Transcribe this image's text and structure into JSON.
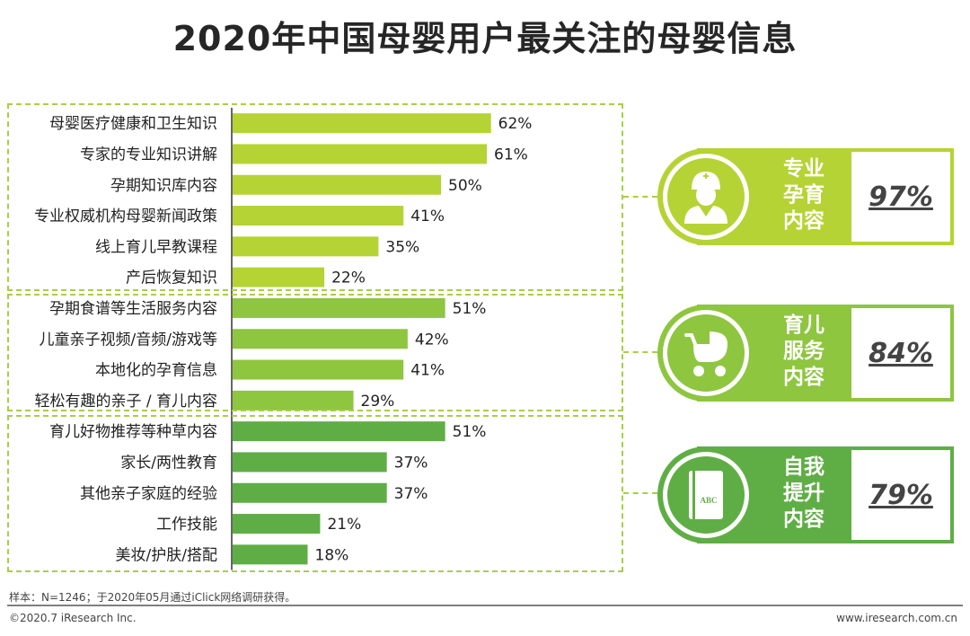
{
  "title": "2020年中国母婴用户最关注的母婴信息",
  "chart_data": {
    "type": "bar",
    "orientation": "horizontal",
    "title": "2020年中国母婴用户最关注的母婴信息",
    "unit": "%",
    "categories": [
      "母婴医疗健康和卫生知识",
      "专家的专业知识讲解",
      "孕期知识库内容",
      "专业权威机构母婴新闻政策",
      "线上育儿早教课程",
      "产后恢复知识",
      "孕期食谱等生活服务内容",
      "儿童亲子视频/音频/游戏等",
      "本地化的孕育信息",
      "轻松有趣的亲子 / 育儿内容",
      "育儿好物推荐等种草内容",
      "家长/两性教育",
      "其他亲子家庭的经验",
      "工作技能",
      "美妆/护肤/搭配"
    ],
    "values": [
      62,
      61,
      50,
      41,
      35,
      22,
      51,
      42,
      41,
      29,
      51,
      37,
      37,
      21,
      18
    ],
    "value_labels": [
      "62%",
      "61%",
      "50%",
      "41%",
      "35%",
      "22%",
      "51%",
      "42%",
      "41%",
      "29%",
      "51%",
      "37%",
      "37%",
      "21%",
      "18%"
    ],
    "xlim": [
      0,
      100
    ],
    "groups": [
      {
        "name": "专业孕育内容",
        "start": 0,
        "count": 6,
        "color": "#b5d334",
        "total": 97,
        "total_label": "97%"
      },
      {
        "name": "育儿服务内容",
        "start": 6,
        "count": 4,
        "color": "#8ec63f",
        "total": 84,
        "total_label": "84%"
      },
      {
        "name": "自我提升内容",
        "start": 10,
        "count": 5,
        "color": "#5fae45",
        "total": 79,
        "total_label": "79%"
      }
    ]
  },
  "summaries": [
    {
      "label": "专业孕育内容",
      "line1": "专业",
      "line2": "孕育",
      "line3": "内容",
      "value": "97%",
      "color": "#b5d334",
      "icon": "nurse-icon"
    },
    {
      "label": "育儿服务内容",
      "line1": "育儿",
      "line2": "服务",
      "line3": "内容",
      "value": "84%",
      "color": "#8ec63f",
      "icon": "stroller-icon"
    },
    {
      "label": "自我提升内容",
      "line1": "自我",
      "line2": "提升",
      "line3": "内容",
      "value": "79%",
      "color": "#5fae45",
      "icon": "book-icon"
    }
  ],
  "book_icon_text": "ABC",
  "footer": {
    "note": "样本：N=1246；于2020年05月通过iClick网络调研获得。",
    "copyright": "©2020.7 iResearch Inc.",
    "site": "www.iresearch.com.cn"
  }
}
